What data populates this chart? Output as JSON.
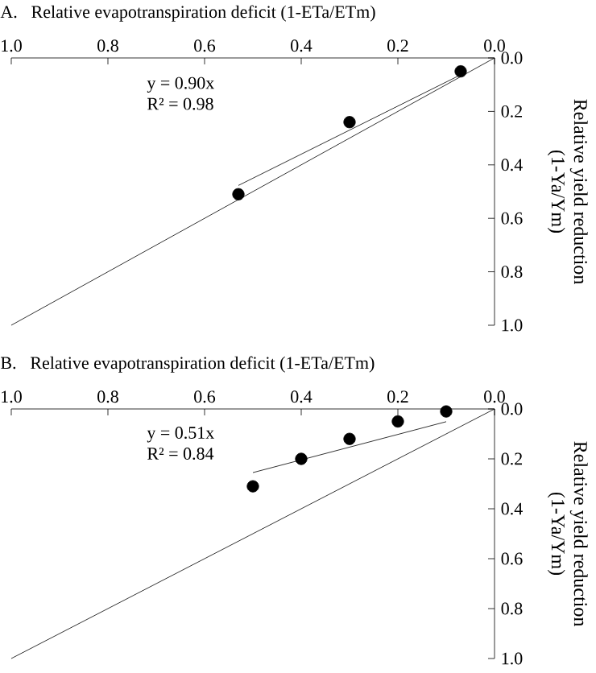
{
  "chart_data": [
    {
      "type": "scatter",
      "title": "A.",
      "xlabel": "Relative evapotranspiration deficit (1-ETa/ETm)",
      "ylabel": "Relative yield reduction (1-Ya/Ym)",
      "annotations": [
        "y = 0.90x",
        "R² = 0.98"
      ],
      "xlim": [
        1,
        0
      ],
      "ylim": [
        1,
        0
      ],
      "xticks": [
        {
          "value": 1,
          "label": "1.0"
        },
        {
          "value": 0.8,
          "label": "0.8"
        },
        {
          "value": 0.6,
          "label": "0.6"
        },
        {
          "value": 0.4,
          "label": "0.4"
        },
        {
          "value": 0.2,
          "label": "0.2"
        },
        {
          "value": 0,
          "label": "0.0"
        }
      ],
      "yticks": [
        {
          "value": 0,
          "label": "0.0"
        },
        {
          "value": 0.2,
          "label": "0.2"
        },
        {
          "value": 0.4,
          "label": "0.4"
        },
        {
          "value": 0.6,
          "label": "0.6"
        },
        {
          "value": 0.8,
          "label": "0.8"
        },
        {
          "value": 1,
          "label": "1.0"
        }
      ],
      "grid": false,
      "series": [
        {
          "type": "scatter",
          "marker": "circle",
          "color": "#000000",
          "x": [
            0.07,
            0.3,
            0.53
          ],
          "values": [
            0.05,
            0.24,
            0.51
          ]
        },
        {
          "type": "line",
          "marker": "none",
          "color": "#000000",
          "x": [
            0.53,
            0.07
          ],
          "values": [
            0.477,
            0.063
          ]
        },
        {
          "type": "line",
          "marker": "none",
          "color": "#000000",
          "x": [
            0,
            1
          ],
          "values": [
            0,
            1
          ]
        }
      ]
    },
    {
      "type": "scatter",
      "title": "B.",
      "xlabel": "Relative evapotranspiration deficit (1-ETa/ETm)",
      "ylabel": "Relative yield reduction (1-Ya/Ym)",
      "annotations": [
        "y = 0.51x",
        "R² = 0.84"
      ],
      "xlim": [
        1,
        0
      ],
      "ylim": [
        1,
        0
      ],
      "xticks": [
        {
          "value": 1,
          "label": "1.0"
        },
        {
          "value": 0.8,
          "label": "0.8"
        },
        {
          "value": 0.6,
          "label": "0.6"
        },
        {
          "value": 0.4,
          "label": "0.4"
        },
        {
          "value": 0.2,
          "label": "0.2"
        },
        {
          "value": 0,
          "label": "0.0"
        }
      ],
      "yticks": [
        {
          "value": 0,
          "label": "0.0"
        },
        {
          "value": 0.2,
          "label": "0.2"
        },
        {
          "value": 0.4,
          "label": "0.4"
        },
        {
          "value": 0.6,
          "label": "0.6"
        },
        {
          "value": 0.8,
          "label": "0.8"
        },
        {
          "value": 1,
          "label": "1.0"
        }
      ],
      "grid": false,
      "series": [
        {
          "type": "scatter",
          "marker": "circle",
          "color": "#000000",
          "x": [
            0.1,
            0.2,
            0.3,
            0.4,
            0.5
          ],
          "values": [
            0.01,
            0.05,
            0.12,
            0.2,
            0.31
          ]
        },
        {
          "type": "line",
          "marker": "none",
          "color": "#000000",
          "x": [
            0.5,
            0.1
          ],
          "values": [
            0.255,
            0.051
          ]
        },
        {
          "type": "line",
          "marker": "none",
          "color": "#000000",
          "x": [
            0,
            1
          ],
          "values": [
            0,
            1
          ]
        }
      ]
    }
  ]
}
